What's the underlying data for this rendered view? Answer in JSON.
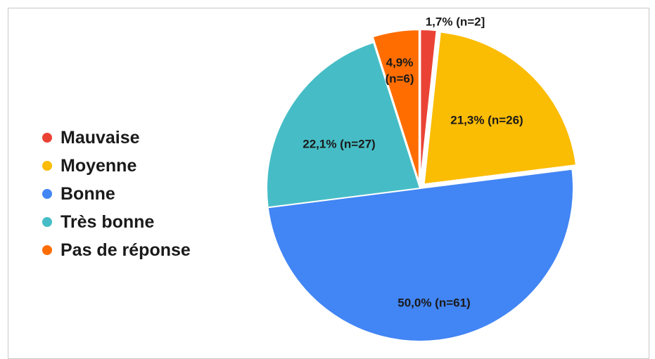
{
  "chart_data": {
    "type": "pie",
    "title": "",
    "legend_position": "left",
    "slices": [
      {
        "name": "Mauvaise",
        "percent": 1.7,
        "n": 2,
        "label": "1,7% (n=2]",
        "color": "#ea4335",
        "exploded": true
      },
      {
        "name": "Moyenne",
        "percent": 21.3,
        "n": 26,
        "label": "21,3% (n=26)",
        "color": "#fbbc04",
        "exploded": true
      },
      {
        "name": "Bonne",
        "percent": 50.0,
        "n": 61,
        "label": "50,0% (n=61)",
        "color": "#4285f4",
        "exploded": false
      },
      {
        "name": "Très bonne",
        "percent": 22.1,
        "n": 27,
        "label": "22,1% (n=27)",
        "color": "#46bdc6",
        "exploded": false
      },
      {
        "name": "Pas de réponse",
        "percent": 4.9,
        "n": 6,
        "label_lines": [
          "4,9%",
          "(n=6)"
        ],
        "color": "#ff6d01",
        "exploded": true
      }
    ]
  }
}
